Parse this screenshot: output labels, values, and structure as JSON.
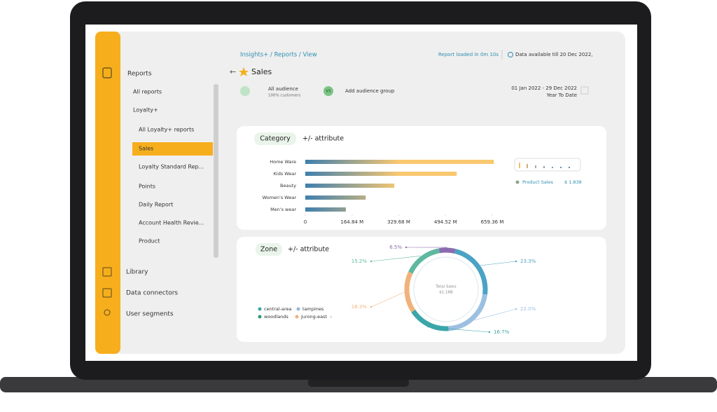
{
  "sidebar": {
    "items": [
      "Reports",
      "All reports",
      "Loyalty+",
      "All Loyalty+ reports",
      "Sales",
      "Loyalty Standard Rep...",
      "Points",
      "Daily Report",
      "Account Health Revie...",
      "Product"
    ],
    "active": 4,
    "bottom": [
      "Library",
      "Data connectors",
      "User segments"
    ]
  },
  "header": {
    "breadcrumb": "Insights+ / Reports / View",
    "load_status": "Report loaded in 0m 10s",
    "data_till": "Data  available till  20 Dec 2022,",
    "title": "Sales",
    "audience": "All audience",
    "audience_sub": "100% customers",
    "vs": "VS",
    "add_group": "Add audience group",
    "date_range": "01 Jan 2022 - 29 Dec 2022",
    "period": "Year To Date"
  },
  "category_card": {
    "tab": "Category",
    "attribute": "+/- attribute",
    "legend_label": "Product Sales",
    "legend_value": "$ 1.838"
  },
  "zone_card": {
    "tab": "Zone",
    "attribute": "+/- attribute",
    "center_title": "Total Sales",
    "center_value": "$1.16B",
    "legend": [
      {
        "name": "central-area",
        "color": "#3aa6a8"
      },
      {
        "name": "tampines",
        "color": "#8fb8dc"
      },
      {
        "name": "woodlands",
        "color": "#2f9a6e"
      },
      {
        "name": "Jurong-east",
        "color": "#f0b27a"
      }
    ]
  },
  "chart_data": [
    {
      "type": "bar",
      "orientation": "horizontal",
      "categories": [
        "Home Ware",
        "Kids Wear",
        "Beauty",
        "Women's Wear",
        "Men's wear"
      ],
      "values": [
        665,
        534,
        314,
        213,
        143
      ],
      "color_start": "#3f7fae",
      "color_end": "#f9c870",
      "xlim": [
        0,
        659.36
      ],
      "xticks": [
        0,
        {
          "value": 164.84,
          "label": "164.84 M"
        },
        {
          "value": 329.68,
          "label": "329.68 M"
        },
        {
          "value": 494.52,
          "label": "494.52 M"
        },
        {
          "value": 659.36,
          "label": "659.36 M"
        }
      ]
    },
    {
      "type": "donut",
      "values": [
        6.5,
        23.3,
        22.0,
        16.7,
        16.3,
        15.2
      ],
      "value_labels": [
        "6.5%",
        "23.3%",
        "22.0%",
        "16.7%",
        "16.3%",
        "15.2%"
      ],
      "colors": [
        "#8a6bb0",
        "#4aa3c4",
        "#9cc0e0",
        "#3aa6a8",
        "#f0b27a",
        "#5fb8a0"
      ]
    }
  ]
}
